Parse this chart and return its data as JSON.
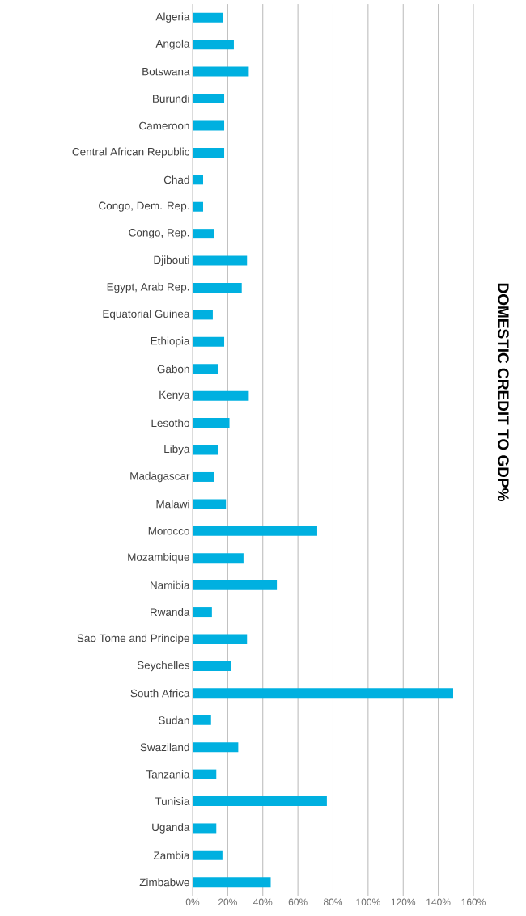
{
  "chart_data": {
    "type": "bar",
    "orientation": "horizontal",
    "title": "DOMESTIC CREDIT TO GDP%",
    "categories": [
      "Algeria",
      "Angola",
      "Botswana",
      "Burundi",
      "Cameroon",
      "Central African Republic",
      "Chad",
      "Congo, Dem. Rep.",
      "Congo, Rep.",
      "Djibouti",
      "Egypt, Arab Rep.",
      "Equatorial Guinea",
      "Ethiopia",
      "Gabon",
      "Kenya",
      "Lesotho",
      "Libya",
      "Madagascar",
      "Malawi",
      "Morocco",
      "Mozambique",
      "Namibia",
      "Rwanda",
      "Sao Tome and Principe",
      "Seychelles",
      "South Africa",
      "Sudan",
      "Swaziland",
      "Tanzania",
      "Tunisia",
      "Uganda",
      "Zambia",
      "Zimbabwe"
    ],
    "values": [
      17.5,
      23.5,
      32,
      18,
      18,
      18,
      6,
      6,
      12,
      31,
      28,
      11.5,
      18,
      14.5,
      32,
      21,
      14.5,
      12,
      19,
      71,
      29,
      48,
      11,
      31,
      22,
      148.5,
      10.5,
      26,
      13.5,
      76.5,
      13.5,
      17,
      44.5
    ],
    "color": "#00b0e0",
    "xlim": [
      0,
      160
    ],
    "xticks": [
      {
        "value": 0,
        "label": "0%"
      },
      {
        "value": 20,
        "label": "20%"
      },
      {
        "value": 40,
        "label": "40%"
      },
      {
        "value": 60,
        "label": "60%"
      },
      {
        "value": 80,
        "label": "80%"
      },
      {
        "value": 100,
        "label": "100%"
      },
      {
        "value": 120,
        "label": "120%"
      },
      {
        "value": 140,
        "label": "140%"
      },
      {
        "value": 160,
        "label": "160%"
      }
    ],
    "grid": "x"
  }
}
